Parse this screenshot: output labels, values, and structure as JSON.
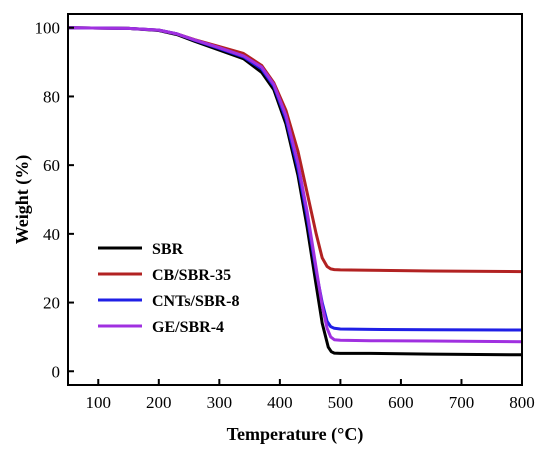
{
  "chart_data": {
    "type": "line",
    "title": "",
    "xlabel": "Temperature (°C)",
    "ylabel": "Weight (%)",
    "xlim": [
      50,
      800
    ],
    "ylim": [
      -4,
      104
    ],
    "xticks": [
      100,
      200,
      300,
      400,
      500,
      600,
      700,
      800
    ],
    "yticks": [
      0,
      20,
      40,
      60,
      80,
      100
    ],
    "grid": false,
    "legend_position": "bottom-left",
    "series": [
      {
        "name": "SBR",
        "color": "#000000",
        "x": [
          50,
          150,
          200,
          230,
          260,
          300,
          340,
          370,
          390,
          410,
          430,
          445,
          460,
          470,
          480,
          485,
          490,
          500,
          550,
          650,
          800
        ],
        "y": [
          100,
          99.8,
          99.2,
          98,
          96,
          93.5,
          91,
          87,
          82,
          72,
          57,
          42,
          25,
          14,
          7,
          5.7,
          5.3,
          5.2,
          5.2,
          5.0,
          4.8
        ]
      },
      {
        "name": "CB/SBR-35",
        "color": "#b22222",
        "x": [
          50,
          150,
          200,
          230,
          260,
          300,
          340,
          370,
          390,
          410,
          430,
          445,
          460,
          470,
          478,
          484,
          490,
          500,
          550,
          650,
          800
        ],
        "y": [
          100,
          99.8,
          99.3,
          98.2,
          96.5,
          94.5,
          92.5,
          89,
          84,
          76,
          64,
          52,
          40,
          33,
          30.5,
          29.8,
          29.6,
          29.5,
          29.4,
          29.2,
          29.0
        ]
      },
      {
        "name": "CNTs/SBR-8",
        "color": "#1f1fe6",
        "x": [
          50,
          150,
          200,
          230,
          260,
          300,
          340,
          370,
          390,
          410,
          430,
          445,
          460,
          470,
          478,
          484,
          490,
          500,
          550,
          650,
          800
        ],
        "y": [
          100,
          99.8,
          99.3,
          98.2,
          96.3,
          94,
          91.5,
          88,
          83,
          73.5,
          59,
          45,
          29,
          20,
          14.5,
          13,
          12.5,
          12.3,
          12.2,
          12.1,
          12.0
        ]
      },
      {
        "name": "GE/SBR-4",
        "color": "#a030e0",
        "x": [
          50,
          150,
          200,
          230,
          260,
          300,
          340,
          370,
          390,
          410,
          430,
          445,
          460,
          470,
          478,
          484,
          490,
          500,
          550,
          650,
          800
        ],
        "y": [
          100,
          99.8,
          99.3,
          98.2,
          96.4,
          94.2,
          91.8,
          88.5,
          83.5,
          74.5,
          60.5,
          46.5,
          30,
          19,
          12.5,
          10,
          9.2,
          9.0,
          8.9,
          8.8,
          8.6
        ]
      }
    ]
  }
}
